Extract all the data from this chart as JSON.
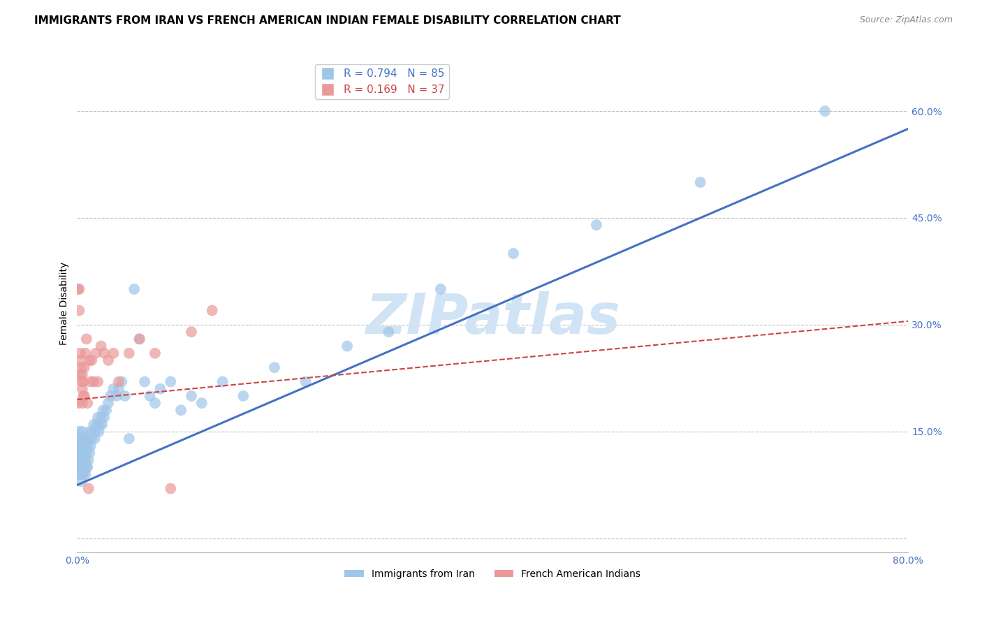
{
  "title": "IMMIGRANTS FROM IRAN VS FRENCH AMERICAN INDIAN FEMALE DISABILITY CORRELATION CHART",
  "source": "Source: ZipAtlas.com",
  "ylabel": "Female Disability",
  "xlim": [
    0.0,
    0.8
  ],
  "ylim": [
    -0.02,
    0.68
  ],
  "yticks": [
    0.0,
    0.15,
    0.3,
    0.45,
    0.6
  ],
  "ytick_labels": [
    "",
    "15.0%",
    "30.0%",
    "45.0%",
    "60.0%"
  ],
  "xticks": [
    0.0,
    0.2,
    0.4,
    0.6,
    0.8
  ],
  "xtick_labels": [
    "0.0%",
    "",
    "",
    "",
    "80.0%"
  ],
  "axis_color": "#4472c4",
  "tick_color": "#4472c4",
  "grid_color": "#c0c0c0",
  "background_color": "#ffffff",
  "watermark_text": "ZIPatlas",
  "watermark_color": "#d0e4f5",
  "legend_r1": "R = 0.794",
  "legend_n1": "N = 85",
  "legend_r2": "R = 0.169",
  "legend_n2": "N = 37",
  "blue_color": "#9fc5e8",
  "pink_color": "#ea9999",
  "blue_line_color": "#4472c4",
  "pink_line_color": "#cc4444",
  "iran_line_x": [
    0.0,
    0.8
  ],
  "iran_line_y": [
    0.075,
    0.575
  ],
  "french_line_x": [
    0.0,
    0.8
  ],
  "french_line_y": [
    0.195,
    0.305
  ],
  "title_fontsize": 11,
  "source_fontsize": 9,
  "legend_fontsize": 11,
  "axis_label_fontsize": 10,
  "tick_fontsize": 10,
  "iran_x": [
    0.001,
    0.001,
    0.001,
    0.002,
    0.002,
    0.002,
    0.002,
    0.002,
    0.003,
    0.003,
    0.003,
    0.003,
    0.003,
    0.004,
    0.004,
    0.004,
    0.004,
    0.005,
    0.005,
    0.005,
    0.005,
    0.005,
    0.006,
    0.006,
    0.006,
    0.006,
    0.007,
    0.007,
    0.007,
    0.008,
    0.008,
    0.008,
    0.009,
    0.009,
    0.009,
    0.01,
    0.01,
    0.011,
    0.011,
    0.012,
    0.012,
    0.013,
    0.014,
    0.015,
    0.016,
    0.017,
    0.018,
    0.019,
    0.02,
    0.021,
    0.022,
    0.023,
    0.024,
    0.025,
    0.026,
    0.028,
    0.03,
    0.032,
    0.035,
    0.038,
    0.04,
    0.043,
    0.046,
    0.05,
    0.055,
    0.06,
    0.065,
    0.07,
    0.075,
    0.08,
    0.09,
    0.1,
    0.11,
    0.12,
    0.14,
    0.16,
    0.19,
    0.22,
    0.26,
    0.3,
    0.35,
    0.42,
    0.5,
    0.6,
    0.72
  ],
  "iran_y": [
    0.1,
    0.11,
    0.13,
    0.09,
    0.1,
    0.12,
    0.14,
    0.15,
    0.09,
    0.1,
    0.11,
    0.12,
    0.13,
    0.08,
    0.1,
    0.12,
    0.14,
    0.09,
    0.1,
    0.11,
    0.13,
    0.15,
    0.09,
    0.11,
    0.12,
    0.14,
    0.1,
    0.12,
    0.13,
    0.09,
    0.11,
    0.13,
    0.1,
    0.12,
    0.14,
    0.1,
    0.13,
    0.11,
    0.14,
    0.12,
    0.15,
    0.13,
    0.14,
    0.15,
    0.16,
    0.14,
    0.15,
    0.16,
    0.17,
    0.15,
    0.16,
    0.17,
    0.16,
    0.18,
    0.17,
    0.18,
    0.19,
    0.2,
    0.21,
    0.2,
    0.21,
    0.22,
    0.2,
    0.14,
    0.35,
    0.28,
    0.22,
    0.2,
    0.19,
    0.21,
    0.22,
    0.18,
    0.2,
    0.19,
    0.22,
    0.2,
    0.24,
    0.22,
    0.27,
    0.29,
    0.35,
    0.4,
    0.44,
    0.5,
    0.6
  ],
  "french_x": [
    0.001,
    0.001,
    0.002,
    0.002,
    0.003,
    0.003,
    0.003,
    0.004,
    0.004,
    0.005,
    0.005,
    0.005,
    0.006,
    0.006,
    0.007,
    0.007,
    0.008,
    0.009,
    0.01,
    0.011,
    0.012,
    0.013,
    0.014,
    0.016,
    0.018,
    0.02,
    0.023,
    0.026,
    0.03,
    0.035,
    0.04,
    0.05,
    0.06,
    0.075,
    0.09,
    0.11,
    0.13
  ],
  "french_y": [
    0.35,
    0.19,
    0.32,
    0.35,
    0.23,
    0.25,
    0.26,
    0.22,
    0.24,
    0.19,
    0.21,
    0.23,
    0.22,
    0.2,
    0.24,
    0.2,
    0.26,
    0.28,
    0.19,
    0.07,
    0.25,
    0.22,
    0.25,
    0.22,
    0.26,
    0.22,
    0.27,
    0.26,
    0.25,
    0.26,
    0.22,
    0.26,
    0.28,
    0.26,
    0.07,
    0.29,
    0.32
  ]
}
